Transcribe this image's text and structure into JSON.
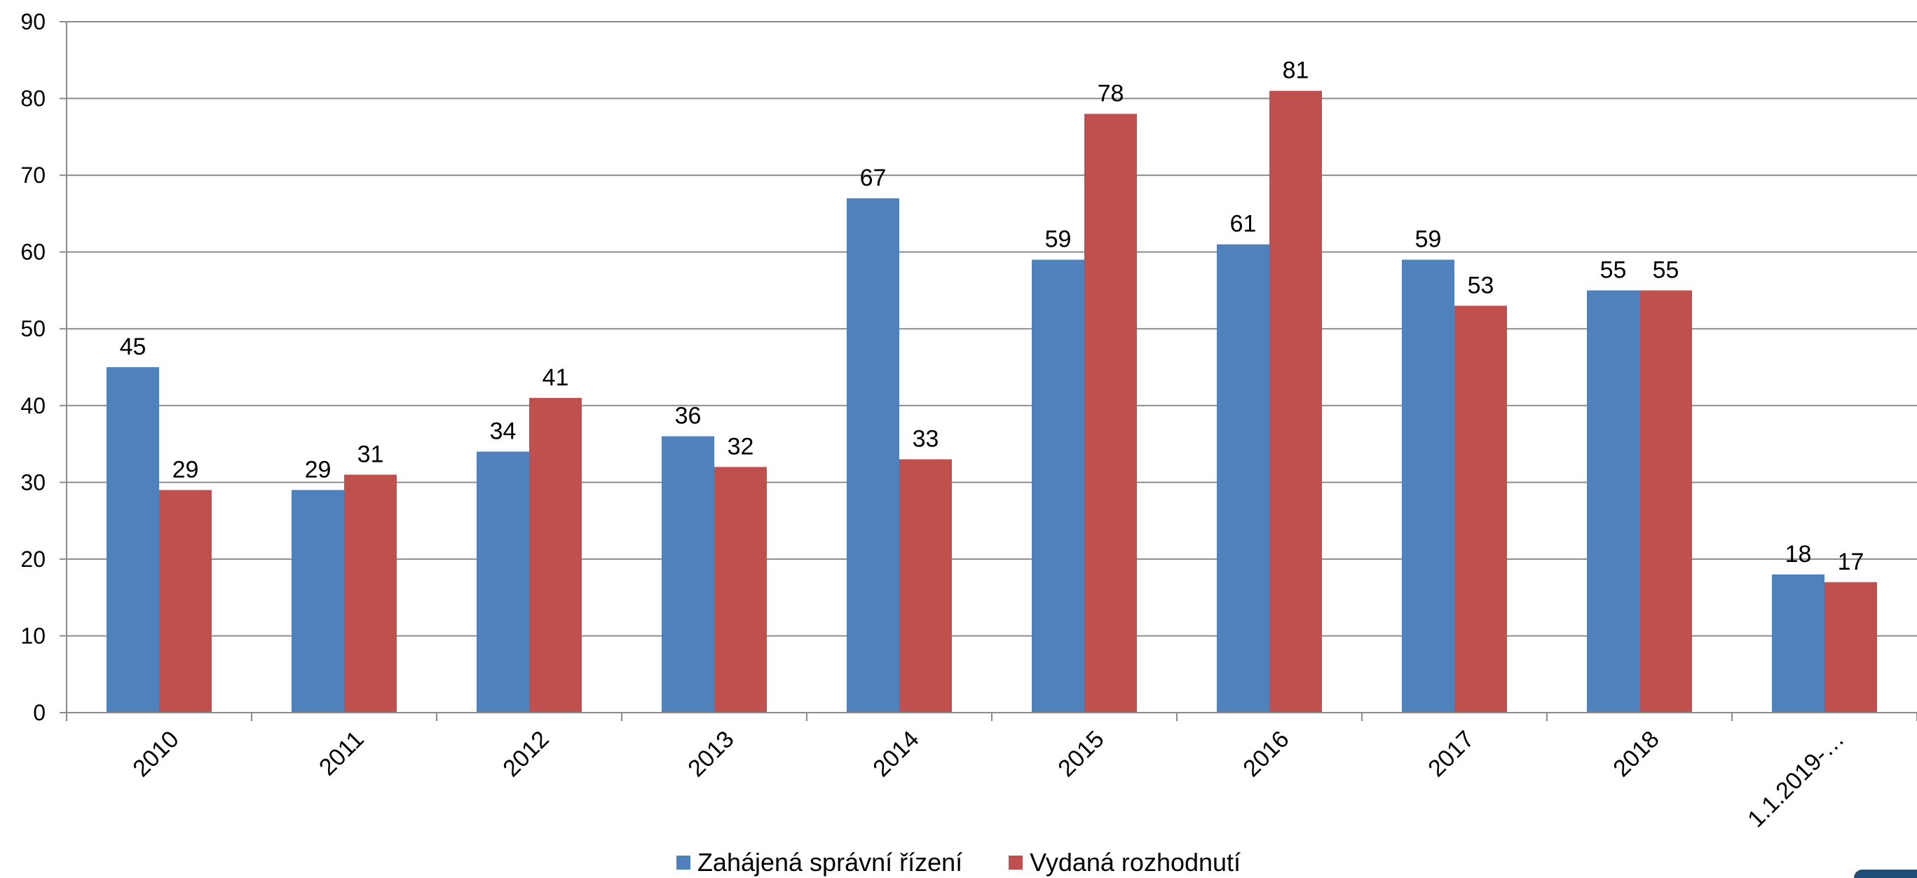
{
  "chart_data": {
    "type": "bar",
    "categories": [
      "2010",
      "2011",
      "2012",
      "2013",
      "2014",
      "2015",
      "2016",
      "2017",
      "2018",
      "1.1.2019-…"
    ],
    "series": [
      {
        "name": "Zahájená správní řízení",
        "color": "#4f81bd",
        "values": [
          45,
          29,
          34,
          36,
          67,
          59,
          61,
          59,
          55,
          18
        ]
      },
      {
        "name": "Vydaná rozhodnutí",
        "color": "#c0504d",
        "values": [
          29,
          31,
          41,
          32,
          33,
          78,
          81,
          53,
          55,
          17
        ]
      }
    ],
    "ylim": [
      0,
      90
    ],
    "yticks": [
      0,
      10,
      20,
      30,
      40,
      50,
      60,
      70,
      80,
      90
    ],
    "grid": true,
    "legend_position": "bottom"
  }
}
